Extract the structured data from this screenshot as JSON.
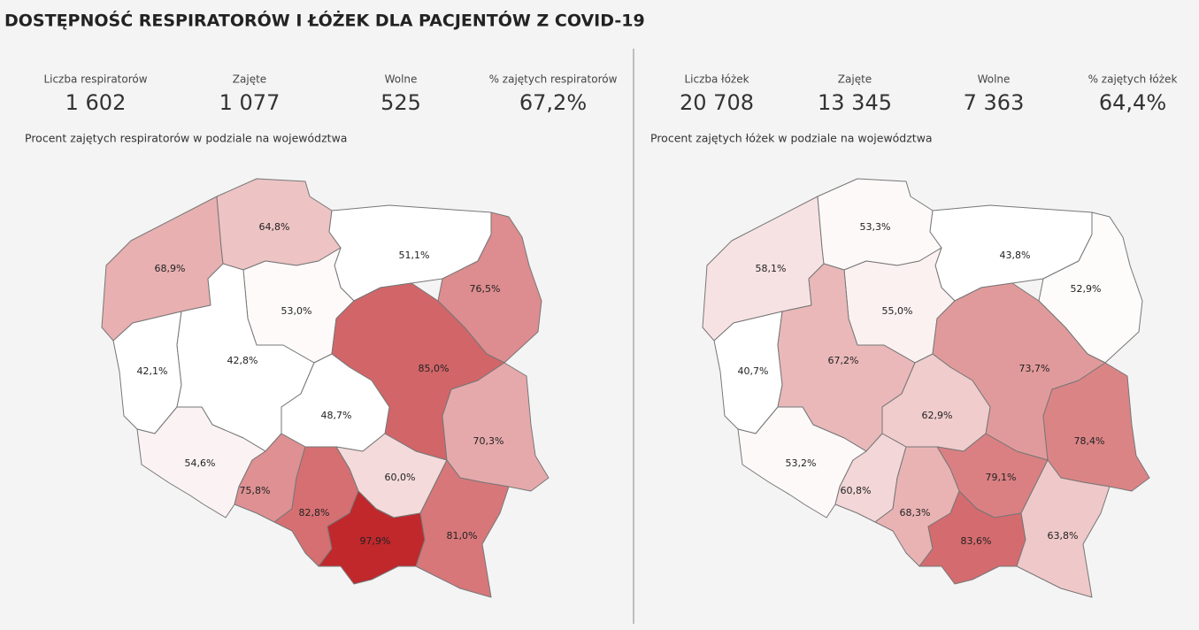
{
  "title": "DOSTĘPNOŚĆ RESPIRATORÓW I ŁÓŻEK DLA PACJENTÓW Z COVID-19",
  "panels": [
    {
      "kpis": [
        {
          "label": "Liczba respiratorów",
          "value": "1 602"
        },
        {
          "label": "Zajęte",
          "value": "1 077"
        },
        {
          "label": "Wolne",
          "value": "525"
        },
        {
          "label": "% zajętych respiratorów",
          "value": "67,2%"
        }
      ],
      "subtitle": "Procent zajętych respiratorów w podziale na województwa",
      "regions": [
        {
          "value": 68.9,
          "label": "68,9%"
        },
        {
          "value": 64.8,
          "label": "64,8%"
        },
        {
          "value": 51.1,
          "label": "51,1%"
        },
        {
          "value": 76.5,
          "label": "76,5%"
        },
        {
          "value": 53.0,
          "label": "53,0%"
        },
        {
          "value": 42.1,
          "label": "42,1%"
        },
        {
          "value": 42.8,
          "label": "42,8%"
        },
        {
          "value": 85.0,
          "label": "85,0%"
        },
        {
          "value": 48.7,
          "label": "48,7%"
        },
        {
          "value": 70.3,
          "label": "70,3%"
        },
        {
          "value": 54.6,
          "label": "54,6%"
        },
        {
          "value": 60.0,
          "label": "60,0%"
        },
        {
          "value": 75.8,
          "label": "75,8%"
        },
        {
          "value": 82.8,
          "label": "82,8%"
        },
        {
          "value": 97.9,
          "label": "97,9%"
        },
        {
          "value": 81.0,
          "label": "81,0%"
        }
      ]
    },
    {
      "kpis": [
        {
          "label": "Liczba łóżek",
          "value": "20 708"
        },
        {
          "label": "Zajęte",
          "value": "13 345"
        },
        {
          "label": "Wolne",
          "value": "7 363"
        },
        {
          "label": "% zajętych łóżek",
          "value": "64,4%"
        }
      ],
      "subtitle": "Procent zajętych łóżek w podziale na województwa",
      "regions": [
        {
          "value": 58.1,
          "label": "58,1%"
        },
        {
          "value": 53.3,
          "label": "53,3%"
        },
        {
          "value": 43.8,
          "label": "43,8%"
        },
        {
          "value": 52.9,
          "label": "52,9%"
        },
        {
          "value": 55.0,
          "label": "55,0%"
        },
        {
          "value": 40.7,
          "label": "40,7%"
        },
        {
          "value": 67.2,
          "label": "67,2%"
        },
        {
          "value": 73.7,
          "label": "73,7%"
        },
        {
          "value": 62.9,
          "label": "62,9%"
        },
        {
          "value": 78.4,
          "label": "78,4%"
        },
        {
          "value": 53.2,
          "label": "53,2%"
        },
        {
          "value": 79.1,
          "label": "79,1%"
        },
        {
          "value": 60.8,
          "label": "60,8%"
        },
        {
          "value": 68.3,
          "label": "68,3%"
        },
        {
          "value": 83.6,
          "label": "83,6%"
        },
        {
          "value": 63.8,
          "label": "63,8%"
        }
      ]
    }
  ]
}
